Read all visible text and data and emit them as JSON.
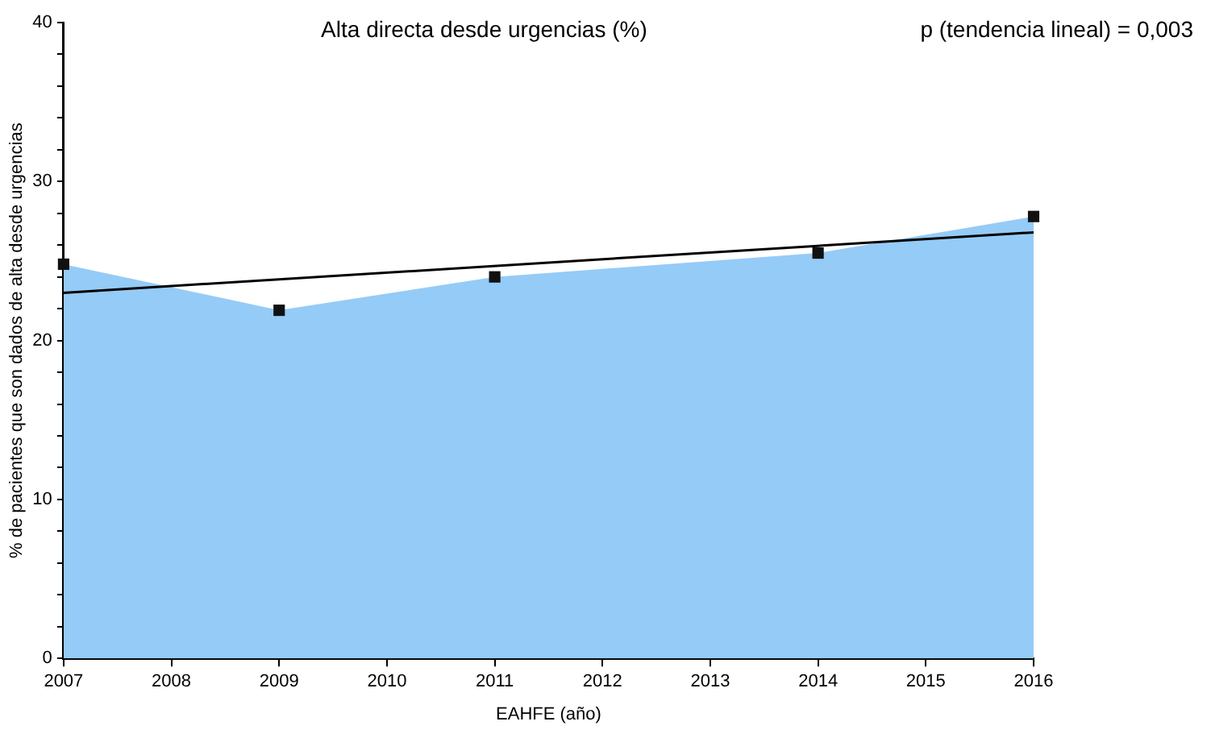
{
  "chart_data": {
    "type": "area",
    "title": "Alta directa desde urgencias (%)",
    "xlabel": "EAHFE (año)",
    "ylabel": "% de pacientes que son dados de alta desde urgencias",
    "annotations": [
      "p (tendencia lineal) = 0,003"
    ],
    "x": [
      2007,
      2009,
      2011,
      2014,
      2016
    ],
    "series": [
      {
        "type": "area",
        "color": "#95cbf7",
        "values": [
          24.8,
          21.9,
          24.0,
          25.5,
          27.8
        ],
        "marker": "square"
      },
      {
        "type": "line",
        "color": "#000000",
        "x": [
          2007,
          2016
        ],
        "values": [
          23.0,
          26.8
        ],
        "marker": "none"
      }
    ],
    "xlim": [
      2007,
      2016
    ],
    "xticks": [
      2007,
      2008,
      2009,
      2010,
      2011,
      2012,
      2013,
      2014,
      2015,
      2016
    ],
    "ylim": [
      0,
      40
    ],
    "yticks": [
      0,
      {
        "value": 2,
        "label": null
      },
      {
        "value": 4,
        "label": null
      },
      {
        "value": 6,
        "label": null
      },
      {
        "value": 8,
        "label": null
      },
      10,
      {
        "value": 12,
        "label": null
      },
      {
        "value": 14,
        "label": null
      },
      {
        "value": 16,
        "label": null
      },
      {
        "value": 18,
        "label": null
      },
      20,
      {
        "value": 22,
        "label": null
      },
      {
        "value": 24,
        "label": null
      },
      {
        "value": 26,
        "label": null
      },
      {
        "value": 28,
        "label": null
      },
      30,
      {
        "value": 32,
        "label": null
      },
      {
        "value": 34,
        "label": null
      },
      {
        "value": 36,
        "label": null
      },
      {
        "value": 38,
        "label": null
      },
      40
    ],
    "grid": false,
    "legend": false
  }
}
